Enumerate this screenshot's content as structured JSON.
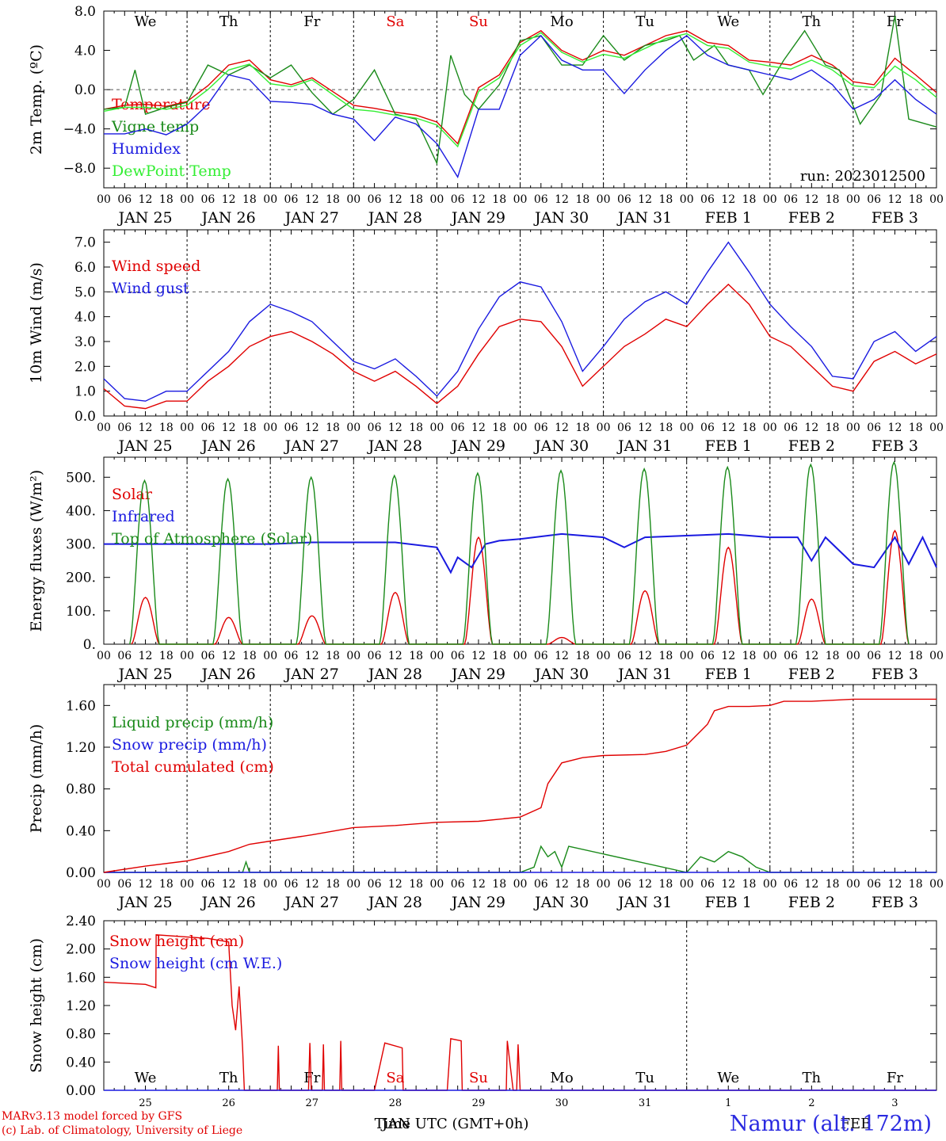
{
  "run_label": "run: 2023012500",
  "footer": {
    "model": "MARv3.13 model forced by GFS",
    "credit": "(c) Lab. of Climatology, University of Liege",
    "station": "Namur (alt. 172m)",
    "x_title": "Time UTC (GMT+0h)",
    "month_jan": "JAN",
    "month_feb": "FEB"
  },
  "colors": {
    "red": "#e00000",
    "green": "#1a8a1a",
    "blue": "#1a1ae0",
    "lime": "#33ee33",
    "weekend": "#e00000"
  },
  "days": [
    {
      "dow": "We",
      "date": "JAN 25",
      "num": "25",
      "weekend": false
    },
    {
      "dow": "Th",
      "date": "JAN 26",
      "num": "26",
      "weekend": false
    },
    {
      "dow": "Fr",
      "date": "JAN 27",
      "num": "27",
      "weekend": false
    },
    {
      "dow": "Sa",
      "date": "JAN 28",
      "num": "28",
      "weekend": true
    },
    {
      "dow": "Su",
      "date": "JAN 29",
      "num": "29",
      "weekend": true
    },
    {
      "dow": "Mo",
      "date": "JAN 30",
      "num": "30",
      "weekend": false
    },
    {
      "dow": "Tu",
      "date": "JAN 31",
      "num": "31",
      "weekend": false
    },
    {
      "dow": "We",
      "date": "FEB 1",
      "num": "1",
      "weekend": false
    },
    {
      "dow": "Th",
      "date": "FEB 2",
      "num": "2",
      "weekend": false
    },
    {
      "dow": "Fr",
      "date": "FEB 3",
      "num": "3",
      "weekend": false
    }
  ],
  "hour_labels": [
    "00",
    "06",
    "12",
    "18"
  ],
  "chart_data": [
    {
      "type": "line",
      "id": "temp",
      "ylabel": "2m Temp. (ºC)",
      "ylim": [
        -10,
        8
      ],
      "ticks": [
        "8.0",
        "4.0",
        "0.0",
        "−4.0",
        "−8.0"
      ],
      "tick_values": [
        8,
        4,
        0,
        -4,
        -8
      ],
      "ref_line": 0,
      "x_unit": "hours since 2023-01-25 00 UTC",
      "series": [
        {
          "name": "Temperature",
          "color": "red",
          "x": [
            0,
            6,
            12,
            18,
            24,
            30,
            36,
            42,
            48,
            54,
            60,
            66,
            72,
            78,
            84,
            90,
            96,
            102,
            108,
            114,
            120,
            126,
            132,
            138,
            144,
            150,
            156,
            162,
            168,
            174,
            180,
            186,
            192,
            198,
            204,
            210,
            216,
            222,
            228,
            234,
            240
          ],
          "y": [
            -2.0,
            -1.6,
            -1.5,
            -1.7,
            -1.2,
            0.4,
            2.5,
            3.0,
            1.0,
            0.5,
            1.2,
            -0.2,
            -1.6,
            -1.9,
            -2.3,
            -2.6,
            -3.3,
            -5.5,
            0.2,
            1.5,
            4.8,
            6.0,
            4.0,
            3.0,
            4.0,
            3.5,
            4.5,
            5.5,
            6.0,
            4.8,
            4.5,
            3.0,
            2.8,
            2.5,
            3.5,
            2.5,
            0.8,
            0.5,
            3.2,
            1.5,
            -0.3
          ]
        },
        {
          "name": "Vigne temp",
          "color": "green",
          "x": [
            0,
            6,
            9,
            12,
            18,
            24,
            30,
            36,
            42,
            48,
            54,
            60,
            66,
            72,
            78,
            84,
            90,
            96,
            100,
            104,
            108,
            114,
            120,
            126,
            132,
            138,
            144,
            150,
            156,
            162,
            166,
            170,
            176,
            180,
            186,
            190,
            196,
            202,
            208,
            212,
            218,
            224,
            228,
            232,
            240
          ],
          "y": [
            -2.0,
            -1.8,
            2.0,
            -2.5,
            -1.8,
            -1.3,
            2.5,
            1.5,
            2.5,
            1.2,
            2.5,
            -0.3,
            -2.5,
            -1.0,
            2.0,
            -2.5,
            -3.0,
            -7.5,
            3.5,
            -0.5,
            -2.0,
            0.5,
            5.0,
            5.5,
            2.5,
            2.5,
            5.5,
            3.0,
            4.5,
            5.0,
            5.5,
            3.0,
            4.5,
            2.5,
            2.0,
            -0.5,
            3.0,
            6.0,
            2.5,
            2.0,
            -3.5,
            -0.5,
            7.5,
            -3.0,
            -3.8
          ]
        },
        {
          "name": "Humidex",
          "color": "blue",
          "x": [
            0,
            6,
            12,
            18,
            24,
            30,
            36,
            42,
            48,
            54,
            60,
            66,
            72,
            78,
            84,
            90,
            96,
            102,
            108,
            114,
            120,
            126,
            132,
            138,
            144,
            150,
            156,
            162,
            168,
            174,
            180,
            186,
            192,
            198,
            204,
            210,
            216,
            222,
            228,
            234,
            240
          ],
          "y": [
            -4.5,
            -4.5,
            -4.0,
            -4.6,
            -3.5,
            -1.5,
            1.5,
            1.0,
            -1.2,
            -1.3,
            -1.5,
            -2.5,
            -3.0,
            -5.2,
            -2.8,
            -3.5,
            -5.5,
            -8.9,
            -2.0,
            -2.0,
            3.5,
            5.5,
            3.0,
            2.0,
            2.0,
            -0.4,
            2.0,
            4.0,
            5.5,
            3.5,
            2.5,
            2.0,
            1.5,
            1.0,
            2.0,
            0.5,
            -2.0,
            -1.0,
            1.0,
            -1.0,
            -2.5
          ]
        },
        {
          "name": "DewPoint Temp",
          "color": "lime",
          "x": [
            0,
            6,
            12,
            18,
            24,
            30,
            36,
            42,
            48,
            54,
            60,
            66,
            72,
            78,
            84,
            90,
            96,
            102,
            108,
            114,
            120,
            126,
            132,
            138,
            144,
            150,
            156,
            162,
            168,
            174,
            180,
            186,
            192,
            198,
            204,
            210,
            216,
            222,
            228,
            234,
            240
          ],
          "y": [
            -2.2,
            -1.8,
            -1.8,
            -2.0,
            -1.6,
            0.0,
            2.0,
            2.6,
            0.6,
            0.3,
            1.0,
            -0.5,
            -2.0,
            -2.2,
            -2.6,
            -2.9,
            -3.6,
            -5.8,
            -0.2,
            1.2,
            4.5,
            5.8,
            3.8,
            2.8,
            3.6,
            3.2,
            4.2,
            5.2,
            5.7,
            4.5,
            4.2,
            2.8,
            2.4,
            2.1,
            3.0,
            2.0,
            0.4,
            0.2,
            2.4,
            1.0,
            -0.8
          ]
        }
      ]
    },
    {
      "type": "line",
      "id": "wind",
      "ylabel": "10m Wind (m/s)",
      "ylim": [
        0,
        7.5
      ],
      "ticks": [
        "7.0",
        "6.0",
        "5.0",
        "4.0",
        "3.0",
        "2.0",
        "1.0",
        "0.0"
      ],
      "tick_values": [
        7,
        6,
        5,
        4,
        3,
        2,
        1,
        0
      ],
      "ref_line": 5,
      "series": [
        {
          "name": "Wind speed",
          "color": "red",
          "x": [
            0,
            6,
            12,
            18,
            24,
            30,
            36,
            42,
            48,
            54,
            60,
            66,
            72,
            78,
            84,
            90,
            96,
            102,
            108,
            114,
            120,
            126,
            132,
            138,
            144,
            150,
            156,
            162,
            168,
            174,
            180,
            186,
            192,
            198,
            204,
            210,
            216,
            222,
            228,
            234,
            240
          ],
          "y": [
            1.1,
            0.4,
            0.3,
            0.6,
            0.6,
            1.4,
            2.0,
            2.8,
            3.2,
            3.4,
            3.0,
            2.5,
            1.8,
            1.4,
            1.8,
            1.2,
            0.5,
            1.2,
            2.5,
            3.6,
            3.9,
            3.8,
            2.8,
            1.2,
            2.0,
            2.8,
            3.3,
            3.9,
            3.6,
            4.5,
            5.3,
            4.5,
            3.2,
            2.8,
            2.0,
            1.2,
            1.0,
            2.2,
            2.6,
            2.1,
            2.5
          ]
        },
        {
          "name": "Wind gust",
          "color": "blue",
          "x": [
            0,
            6,
            12,
            18,
            24,
            30,
            36,
            42,
            48,
            54,
            60,
            66,
            72,
            78,
            84,
            90,
            96,
            102,
            108,
            114,
            120,
            126,
            132,
            138,
            144,
            150,
            156,
            162,
            168,
            174,
            180,
            186,
            192,
            198,
            204,
            210,
            216,
            222,
            228,
            234,
            240
          ],
          "y": [
            1.5,
            0.7,
            0.6,
            1.0,
            1.0,
            1.8,
            2.6,
            3.8,
            4.5,
            4.2,
            3.8,
            3.0,
            2.2,
            1.9,
            2.3,
            1.6,
            0.8,
            1.8,
            3.5,
            4.8,
            5.4,
            5.2,
            3.8,
            1.8,
            2.8,
            3.9,
            4.6,
            5.0,
            4.5,
            5.8,
            7.0,
            5.8,
            4.5,
            3.6,
            2.8,
            1.6,
            1.5,
            3.0,
            3.4,
            2.6,
            3.2
          ]
        }
      ]
    },
    {
      "type": "line",
      "id": "flux",
      "ylabel": "Energy fluxes (W/m²)",
      "ylim": [
        0,
        560
      ],
      "ticks": [
        "500.",
        "400.",
        "300.",
        "200.",
        "100.",
        "0."
      ],
      "tick_values": [
        500,
        400,
        300,
        200,
        100,
        0
      ],
      "series": [
        {
          "name": "Solar",
          "color": "red",
          "peaks": [
            140,
            80,
            85,
            155,
            320,
            20,
            160,
            290,
            135,
            340
          ]
        },
        {
          "name": "Infrared",
          "color": "blue",
          "x": [
            0,
            12,
            24,
            36,
            48,
            60,
            72,
            84,
            96,
            100,
            102,
            106,
            110,
            114,
            120,
            132,
            144,
            150,
            156,
            168,
            180,
            192,
            200,
            204,
            208,
            216,
            222,
            228,
            232,
            236,
            240
          ],
          "y": [
            300,
            300,
            300,
            300,
            300,
            305,
            305,
            305,
            290,
            215,
            260,
            230,
            300,
            310,
            315,
            330,
            320,
            290,
            320,
            325,
            330,
            320,
            320,
            250,
            320,
            240,
            230,
            320,
            240,
            320,
            230
          ]
        },
        {
          "name": "Top of Atmosphere (Solar)",
          "color": "green",
          "peaks": [
            490,
            495,
            500,
            505,
            512,
            520,
            525,
            530,
            538,
            545
          ]
        }
      ]
    },
    {
      "type": "line",
      "id": "precip",
      "ylabel": "Precip (mm/h)",
      "ylim": [
        0,
        1.8
      ],
      "ticks": [
        "1.60",
        "1.20",
        "0.80",
        "0.40",
        "0.00"
      ],
      "tick_values": [
        1.6,
        1.2,
        0.8,
        0.4,
        0
      ],
      "series": [
        {
          "name": "Liquid precip (mm/h)",
          "color": "green",
          "x": [
            0,
            36,
            40,
            41,
            42,
            72,
            84,
            120,
            124,
            126,
            128,
            130,
            132,
            134,
            168,
            172,
            176,
            180,
            184,
            188,
            192,
            240
          ],
          "y": [
            0,
            0,
            0,
            0.1,
            0,
            0,
            0,
            0,
            0.05,
            0.25,
            0.15,
            0.2,
            0.05,
            0.25,
            0,
            0.15,
            0.1,
            0.2,
            0.15,
            0.05,
            0,
            0
          ]
        },
        {
          "name": "Snow precip (mm/h)",
          "color": "blue",
          "x": [
            0,
            240
          ],
          "y": [
            0,
            0
          ]
        },
        {
          "name": "Total cumulated (cm)",
          "color": "red",
          "x": [
            0,
            12,
            24,
            36,
            42,
            48,
            60,
            72,
            84,
            96,
            108,
            120,
            126,
            128,
            132,
            138,
            144,
            156,
            162,
            168,
            174,
            176,
            180,
            186,
            192,
            196,
            204,
            216,
            228,
            240
          ],
          "y": [
            0,
            0.06,
            0.11,
            0.2,
            0.27,
            0.3,
            0.36,
            0.43,
            0.45,
            0.48,
            0.49,
            0.53,
            0.62,
            0.85,
            1.05,
            1.1,
            1.12,
            1.13,
            1.16,
            1.22,
            1.42,
            1.55,
            1.59,
            1.59,
            1.6,
            1.64,
            1.64,
            1.66,
            1.66,
            1.66
          ]
        }
      ]
    },
    {
      "type": "line",
      "id": "snow",
      "ylabel": "Snow height (cm)",
      "ylim": [
        0,
        2.4
      ],
      "ticks": [
        "2.40",
        "2.00",
        "1.60",
        "1.20",
        "0.80",
        "0.40",
        "0.00"
      ],
      "tick_values": [
        2.4,
        2.0,
        1.6,
        1.2,
        0.8,
        0.4,
        0
      ],
      "series": [
        {
          "name": "Snow height (cm)",
          "color": "red",
          "x": [
            0,
            12,
            15,
            15.1,
            30,
            36,
            37,
            38,
            39,
            40,
            40.5,
            42,
            42.3,
            50,
            50.3,
            50.6,
            59,
            59.4,
            59.8,
            63,
            63.3,
            63.6,
            68,
            68.3,
            68.6,
            68.9,
            78,
            81,
            86,
            86.3,
            99,
            100,
            103,
            103.3,
            106,
            116,
            116.3,
            118,
            119,
            119.4,
            120,
            120.3,
            120.6,
            225,
            240
          ],
          "y": [
            1.53,
            1.5,
            1.45,
            2.2,
            2.15,
            2.1,
            1.2,
            0.85,
            1.47,
            0.6,
            0,
            0,
            0,
            0,
            0.63,
            0,
            0,
            0.67,
            0,
            0,
            0.65,
            0,
            0,
            0.7,
            0,
            0,
            0,
            0.67,
            0.6,
            0,
            0,
            0.73,
            0.7,
            0,
            0,
            0,
            0.7,
            0,
            0,
            0.65,
            0,
            0,
            0,
            0,
            0
          ]
        },
        {
          "name": "Snow height (cm W.E.)",
          "color": "blue",
          "x": [
            0,
            240
          ],
          "y": [
            0,
            0
          ]
        }
      ]
    }
  ]
}
